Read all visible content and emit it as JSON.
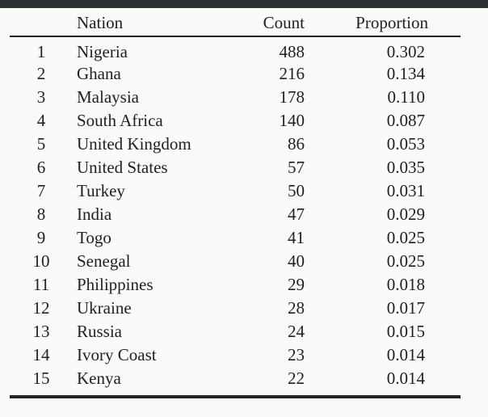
{
  "page": {
    "background_color": "#fafaf8",
    "top_bar_color": "#2d3134",
    "text_color": "#1f1f1f"
  },
  "table": {
    "headers": {
      "rank": "",
      "nation": "Nation",
      "count": "Count",
      "proportion": "Proportion"
    },
    "rows": [
      {
        "rank": "1",
        "nation": "Nigeria",
        "count": "488",
        "proportion": "0.302"
      },
      {
        "rank": "2",
        "nation": "Ghana",
        "count": "216",
        "proportion": "0.134"
      },
      {
        "rank": "3",
        "nation": "Malaysia",
        "count": "178",
        "proportion": "0.110"
      },
      {
        "rank": "4",
        "nation": "South Africa",
        "count": "140",
        "proportion": "0.087"
      },
      {
        "rank": "5",
        "nation": "United Kingdom",
        "count": "86",
        "proportion": "0.053"
      },
      {
        "rank": "6",
        "nation": "United States",
        "count": "57",
        "proportion": "0.035"
      },
      {
        "rank": "7",
        "nation": "Turkey",
        "count": "50",
        "proportion": "0.031"
      },
      {
        "rank": "8",
        "nation": "India",
        "count": "47",
        "proportion": "0.029"
      },
      {
        "rank": "9",
        "nation": "Togo",
        "count": "41",
        "proportion": "0.025"
      },
      {
        "rank": "10",
        "nation": "Senegal",
        "count": "40",
        "proportion": "0.025"
      },
      {
        "rank": "11",
        "nation": "Philippines",
        "count": "29",
        "proportion": "0.018"
      },
      {
        "rank": "12",
        "nation": "Ukraine",
        "count": "28",
        "proportion": "0.017"
      },
      {
        "rank": "13",
        "nation": "Russia",
        "count": "24",
        "proportion": "0.015"
      },
      {
        "rank": "14",
        "nation": "Ivory Coast",
        "count": "23",
        "proportion": "0.014"
      },
      {
        "rank": "15",
        "nation": "Kenya",
        "count": "22",
        "proportion": "0.014"
      }
    ]
  }
}
